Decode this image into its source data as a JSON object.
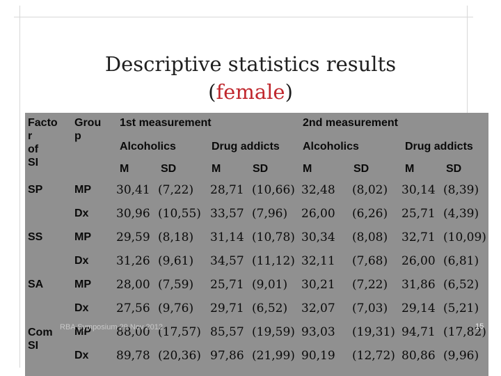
{
  "slide": {
    "title_line1": "Descriptive statistics results",
    "title_open": "(",
    "title_highlight": "female",
    "title_close": ")",
    "footer": "RBA Symposium 29 Nov 2012",
    "page_number": "15"
  },
  "table": {
    "factor_header": [
      "Facto",
      "r",
      "of",
      "SI"
    ],
    "group_header": [
      "Grou",
      "p"
    ],
    "measurement_headers": [
      "1st measurement",
      "2nd measurement"
    ],
    "population_headers": [
      "Alcoholics",
      "Drug addicts",
      "Alcoholics",
      "Drug addicts"
    ],
    "stat_headers": [
      "M",
      "SD",
      "M",
      "SD",
      "M",
      "SD",
      "M",
      "SD"
    ],
    "factors": [
      {
        "label": [
          "SP"
        ],
        "rows": [
          {
            "group": "MP",
            "values": [
              "30,41",
              "(7,22)",
              "28,71",
              "(10,66)",
              "32,48",
              "(8,02)",
              "30,14",
              "(8,39)"
            ]
          },
          {
            "group": "Dx",
            "values": [
              "30,96",
              "(10,55)",
              "33,57",
              "(7,96)",
              "26,00",
              "(6,26)",
              "25,71",
              "(4,39)"
            ]
          }
        ]
      },
      {
        "label": [
          "SS"
        ],
        "rows": [
          {
            "group": "MP",
            "values": [
              "29,59",
              "(8,18)",
              "31,14",
              "(10,78)",
              "30,34",
              "(8,08)",
              "32,71",
              "(10,09)"
            ]
          },
          {
            "group": "Dx",
            "values": [
              "31,26",
              "(9,61)",
              "34,57",
              "(11,12)",
              "32,11",
              "(7,68)",
              "26,00",
              "(6,81)"
            ]
          }
        ]
      },
      {
        "label": [
          "SA"
        ],
        "rows": [
          {
            "group": "MP",
            "values": [
              "28,00",
              "(7,59)",
              "25,71",
              "(9,01)",
              "30,21",
              "(7,22)",
              "31,86",
              "(6,52)"
            ]
          },
          {
            "group": "Dx",
            "values": [
              "27,56",
              "(9,76)",
              "29,71",
              "(6,52)",
              "32,07",
              "(7,03)",
              "29,14",
              "(5,21)"
            ]
          }
        ]
      },
      {
        "label": [
          "Com",
          "SI"
        ],
        "rows": [
          {
            "group": "MP",
            "values": [
              "88,00",
              "(17,57)",
              "85,57",
              "(19,59)",
              "93,03",
              "(19,31)",
              "94,71",
              "(17,82)"
            ]
          },
          {
            "group": "Dx",
            "values": [
              "89,78",
              "(20,36)",
              "97,86",
              "(21,99)",
              "90,19",
              "(12,72)",
              "80,86",
              "(9,96)"
            ]
          }
        ]
      }
    ]
  }
}
